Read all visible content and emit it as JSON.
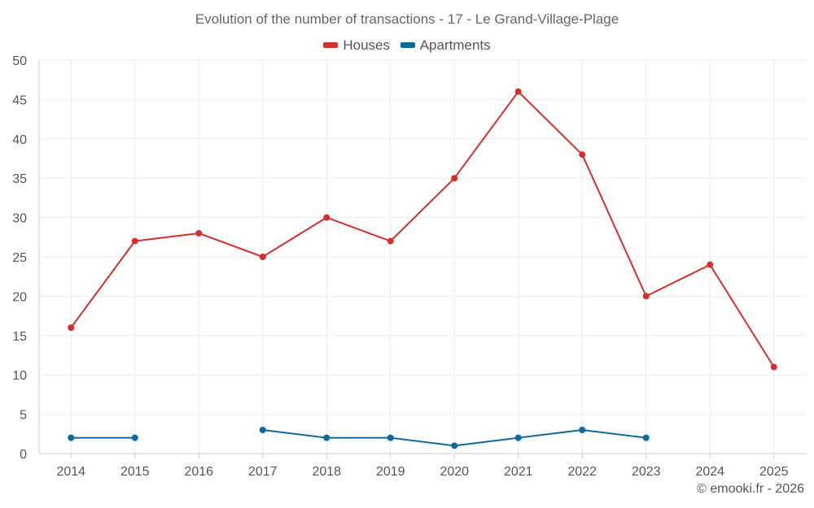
{
  "chart_data": {
    "type": "line",
    "title": "Evolution of the number of transactions - 17 - Le Grand-Village-Plage",
    "categories": [
      "2014",
      "2015",
      "2016",
      "2017",
      "2018",
      "2019",
      "2020",
      "2021",
      "2022",
      "2023",
      "2024",
      "2025"
    ],
    "ylim": [
      0,
      50
    ],
    "yticks": [
      0,
      5,
      10,
      15,
      20,
      25,
      30,
      35,
      40,
      45,
      50
    ],
    "grid": true,
    "legend_position": "top-center",
    "series": [
      {
        "name": "Houses",
        "color": "#d32f2f",
        "values": [
          16,
          27,
          28,
          25,
          30,
          27,
          35,
          46,
          38,
          20,
          24,
          11
        ]
      },
      {
        "name": "Apartments",
        "color": "#0d6aa0",
        "values": [
          2,
          2,
          null,
          3,
          2,
          2,
          1,
          2,
          3,
          2,
          null,
          null
        ]
      }
    ]
  },
  "credit": "© emooki.fr - 2026"
}
